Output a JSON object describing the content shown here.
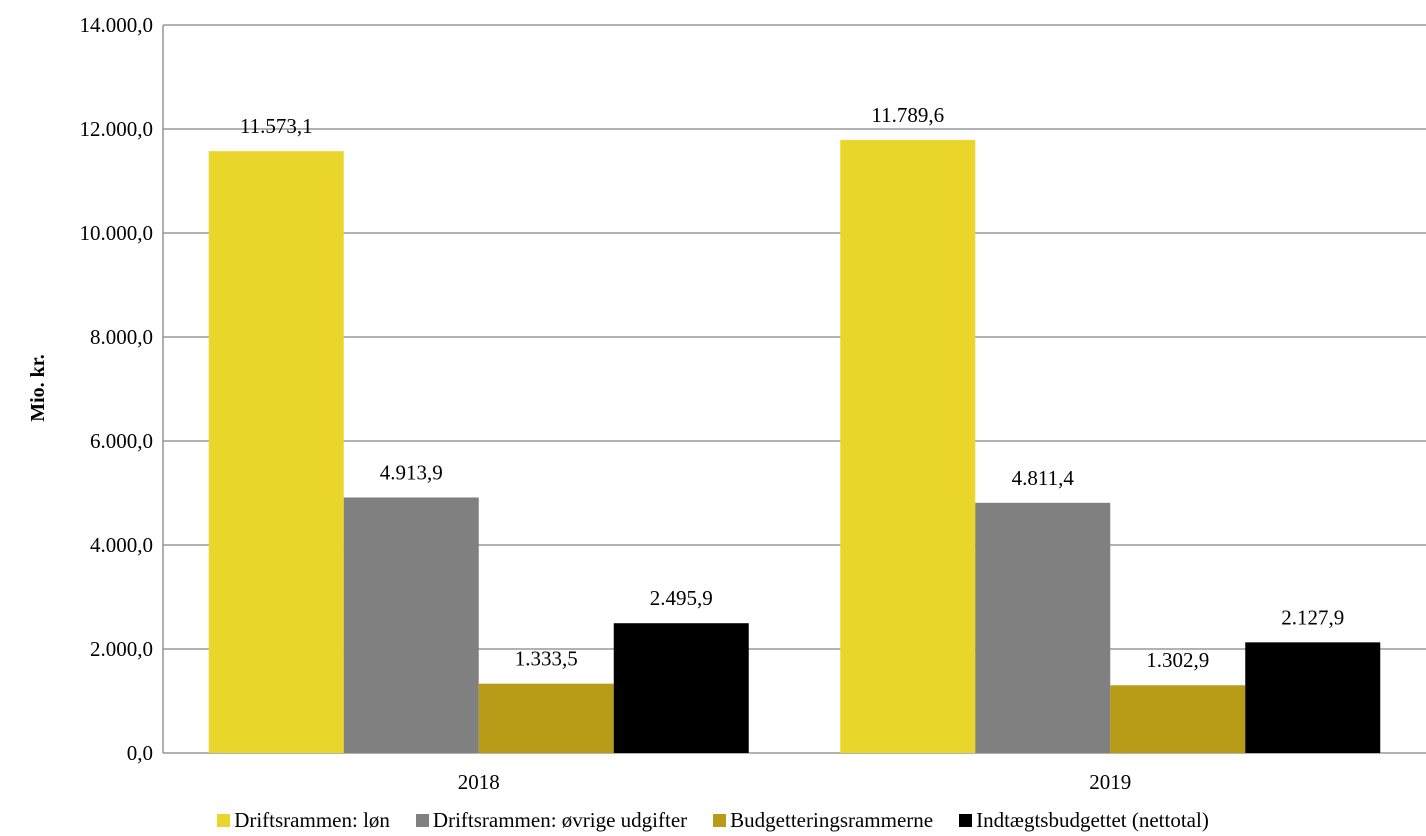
{
  "chart_data": {
    "type": "bar",
    "categories": [
      "2018",
      "2019"
    ],
    "series": [
      {
        "name": "Driftsrammen: løn",
        "values": [
          11573.1,
          11789.6
        ],
        "labels": [
          "11.573,1",
          "11.789,6"
        ],
        "color": "#ead62b"
      },
      {
        "name": "Driftsrammen: øvrige udgifter",
        "values": [
          4913.9,
          4811.4
        ],
        "labels": [
          "4.913,9",
          "4.811,4"
        ],
        "color": "#808080"
      },
      {
        "name": "Budgetteringsrammerne",
        "values": [
          1333.5,
          1302.9
        ],
        "labels": [
          "1.333,5",
          "1.302,9"
        ],
        "color": "#b89c18"
      },
      {
        "name": "Indtægtsbudgettet (nettotal)",
        "values": [
          2495.9,
          2127.9
        ],
        "labels": [
          "2.495,9",
          "2.127,9"
        ],
        "color": "#000000"
      }
    ],
    "ylabel": "Mio. kr.",
    "ylim": [
      0,
      14000
    ],
    "yticks": [
      0,
      2000,
      4000,
      6000,
      8000,
      10000,
      12000,
      14000
    ],
    "ytick_labels": [
      "0,0",
      "2.000,0",
      "4.000,0",
      "6.000,0",
      "8.000,0",
      "10.000,0",
      "12.000,0",
      "14.000,0"
    ],
    "grid": true,
    "legend_position": "bottom"
  }
}
